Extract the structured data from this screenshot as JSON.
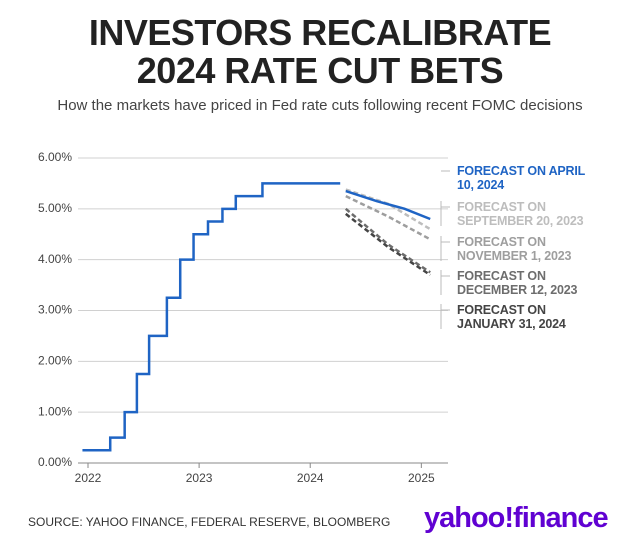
{
  "chart_data": {
    "type": "line",
    "title": "INVESTORS RECALIBRATE 2024 RATE CUT BETS",
    "subtitle": "How the markets have priced in Fed rate cuts following recent FOMC decisions",
    "source": "SOURCE: YAHOO FINANCE, FEDERAL RESERVE, BLOOMBERG",
    "logo": "yahoo!finance",
    "xlim": [
      2021.91,
      2025.24
    ],
    "xticks": [
      2022,
      2023,
      2024,
      2025
    ],
    "ylim": [
      0,
      6
    ],
    "yticks": [
      {
        "value": 0,
        "label": "0.00%"
      },
      {
        "value": 1,
        "label": "1.00%"
      },
      {
        "value": 2,
        "label": "2.00%"
      },
      {
        "value": 3,
        "label": "3.00%"
      },
      {
        "value": 4,
        "label": "4.00%"
      },
      {
        "value": 5,
        "label": "5.00%"
      },
      {
        "value": 6,
        "label": "6.00%"
      }
    ],
    "grid": true,
    "series": [
      {
        "color": "#1f64c4",
        "step": true,
        "dashed": false,
        "x": [
          2021.95,
          2022.2,
          2022.33,
          2022.44,
          2022.55,
          2022.71,
          2022.83,
          2022.95,
          2023.08,
          2023.21,
          2023.33,
          2023.57,
          2024.27
        ],
        "values": [
          0.25,
          0.5,
          1.0,
          1.75,
          2.5,
          3.25,
          4.0,
          4.5,
          4.75,
          5.0,
          5.25,
          5.5,
          5.5
        ]
      },
      {
        "name": "FORECAST ON APRIL 10, 2024",
        "color": "#1f64c4",
        "dashed": false,
        "x": [
          2024.32,
          2024.6,
          2024.85,
          2025.08
        ],
        "values": [
          5.35,
          5.15,
          5.0,
          4.8
        ]
      },
      {
        "name": "FORECAST ON SEPTEMBER 20, 2023",
        "color": "#bdbdbd",
        "dashed": true,
        "x": [
          2024.32,
          2024.7,
          2025.08
        ],
        "values": [
          5.38,
          5.1,
          4.6
        ]
      },
      {
        "name": "FORECAST ON NOVEMBER 1, 2023",
        "color": "#9e9e9e",
        "dashed": true,
        "x": [
          2024.32,
          2024.7,
          2025.08
        ],
        "values": [
          5.25,
          4.85,
          4.4
        ]
      },
      {
        "name": "FORECAST ON DECEMBER 12, 2023",
        "color": "#6d6d6d",
        "dashed": true,
        "x": [
          2024.32,
          2024.7,
          2025.08
        ],
        "values": [
          5.0,
          4.3,
          3.75
        ]
      },
      {
        "name": "FORECAST ON JANUARY 31, 2024",
        "color": "#444444",
        "dashed": true,
        "x": [
          2024.32,
          2024.7,
          2025.08
        ],
        "values": [
          4.9,
          4.25,
          3.7
        ]
      }
    ]
  }
}
